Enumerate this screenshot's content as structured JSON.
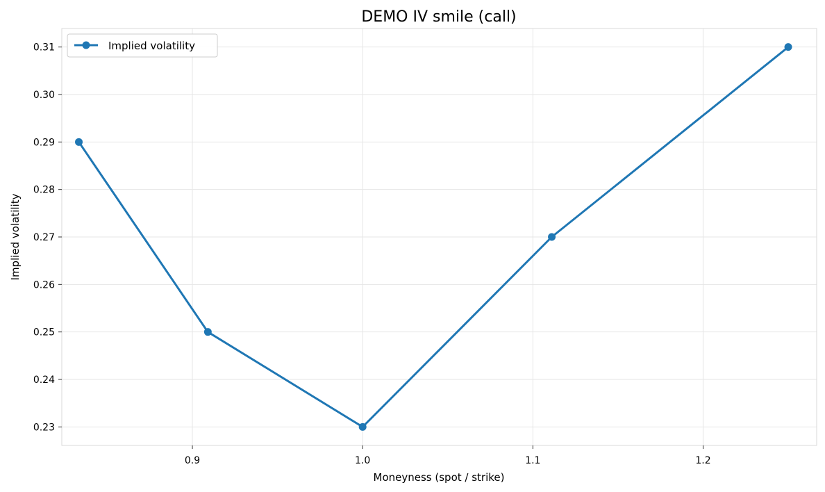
{
  "chart_data": {
    "type": "line",
    "title": "DEMO IV smile (call)",
    "xlabel": "Moneyness (spot / strike)",
    "ylabel": "Implied volatility",
    "xlim": [
      0.8233,
      1.2667
    ],
    "ylim": [
      0.2261,
      0.3139
    ],
    "xticks": [
      0.9,
      1.0,
      1.1,
      1.2
    ],
    "xtick_labels": [
      "0.9",
      "1.0",
      "1.1",
      "1.2"
    ],
    "yticks": [
      0.23,
      0.24,
      0.25,
      0.26,
      0.27,
      0.28,
      0.29,
      0.3,
      0.31
    ],
    "ytick_labels": [
      "0.23",
      "0.24",
      "0.25",
      "0.26",
      "0.27",
      "0.28",
      "0.29",
      "0.30",
      "0.31"
    ],
    "grid": true,
    "legend_position": "top-left",
    "series": [
      {
        "name": "Implied volatility",
        "color": "#1f77b4",
        "marker": "circle",
        "x": [
          0.8333,
          0.9091,
          1.0,
          1.1111,
          1.25
        ],
        "y": [
          0.29,
          0.25,
          0.23,
          0.27,
          0.31
        ]
      }
    ]
  }
}
